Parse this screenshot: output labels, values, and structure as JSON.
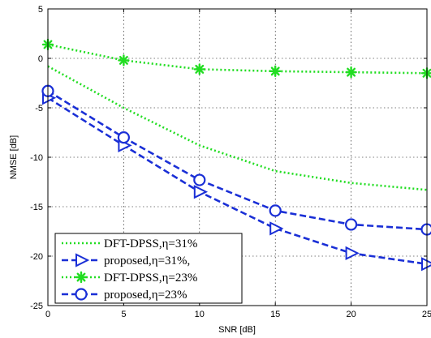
{
  "chart_data": {
    "type": "line",
    "xlabel": "SNR [dB]",
    "ylabel": "NMSE [dB]",
    "xlim": [
      0,
      25
    ],
    "ylim": [
      -25,
      5
    ],
    "xticks": [
      0,
      5,
      10,
      15,
      20,
      25
    ],
    "yticks": [
      5,
      0,
      -5,
      -10,
      -15,
      -20,
      -25
    ],
    "grid": true,
    "legend_position": "bottom-left",
    "x": [
      0,
      5,
      10,
      15,
      20,
      25
    ],
    "series": [
      {
        "name": "DFT-DPSS,η=31%",
        "values": [
          -0.8,
          -5.0,
          -8.8,
          -11.4,
          -12.6,
          -13.3
        ],
        "color": "#22dd22",
        "linestyle": "dotted",
        "marker": "none"
      },
      {
        "name": "proposed,η=31%,",
        "values": [
          -4.0,
          -8.8,
          -13.5,
          -17.2,
          -19.7,
          -20.8
        ],
        "color": "#1a2fd6",
        "linestyle": "dashed",
        "marker": "triangle-right"
      },
      {
        "name": "DFT-DPSS,η=23%",
        "values": [
          1.4,
          -0.2,
          -1.1,
          -1.3,
          -1.4,
          -1.5
        ],
        "color": "#22dd22",
        "linestyle": "dotted",
        "marker": "asterisk"
      },
      {
        "name": "proposed,η=23%",
        "values": [
          -3.3,
          -8.0,
          -12.3,
          -15.4,
          -16.8,
          -17.3
        ],
        "color": "#1a2fd6",
        "linestyle": "dashed",
        "marker": "circle"
      }
    ]
  }
}
